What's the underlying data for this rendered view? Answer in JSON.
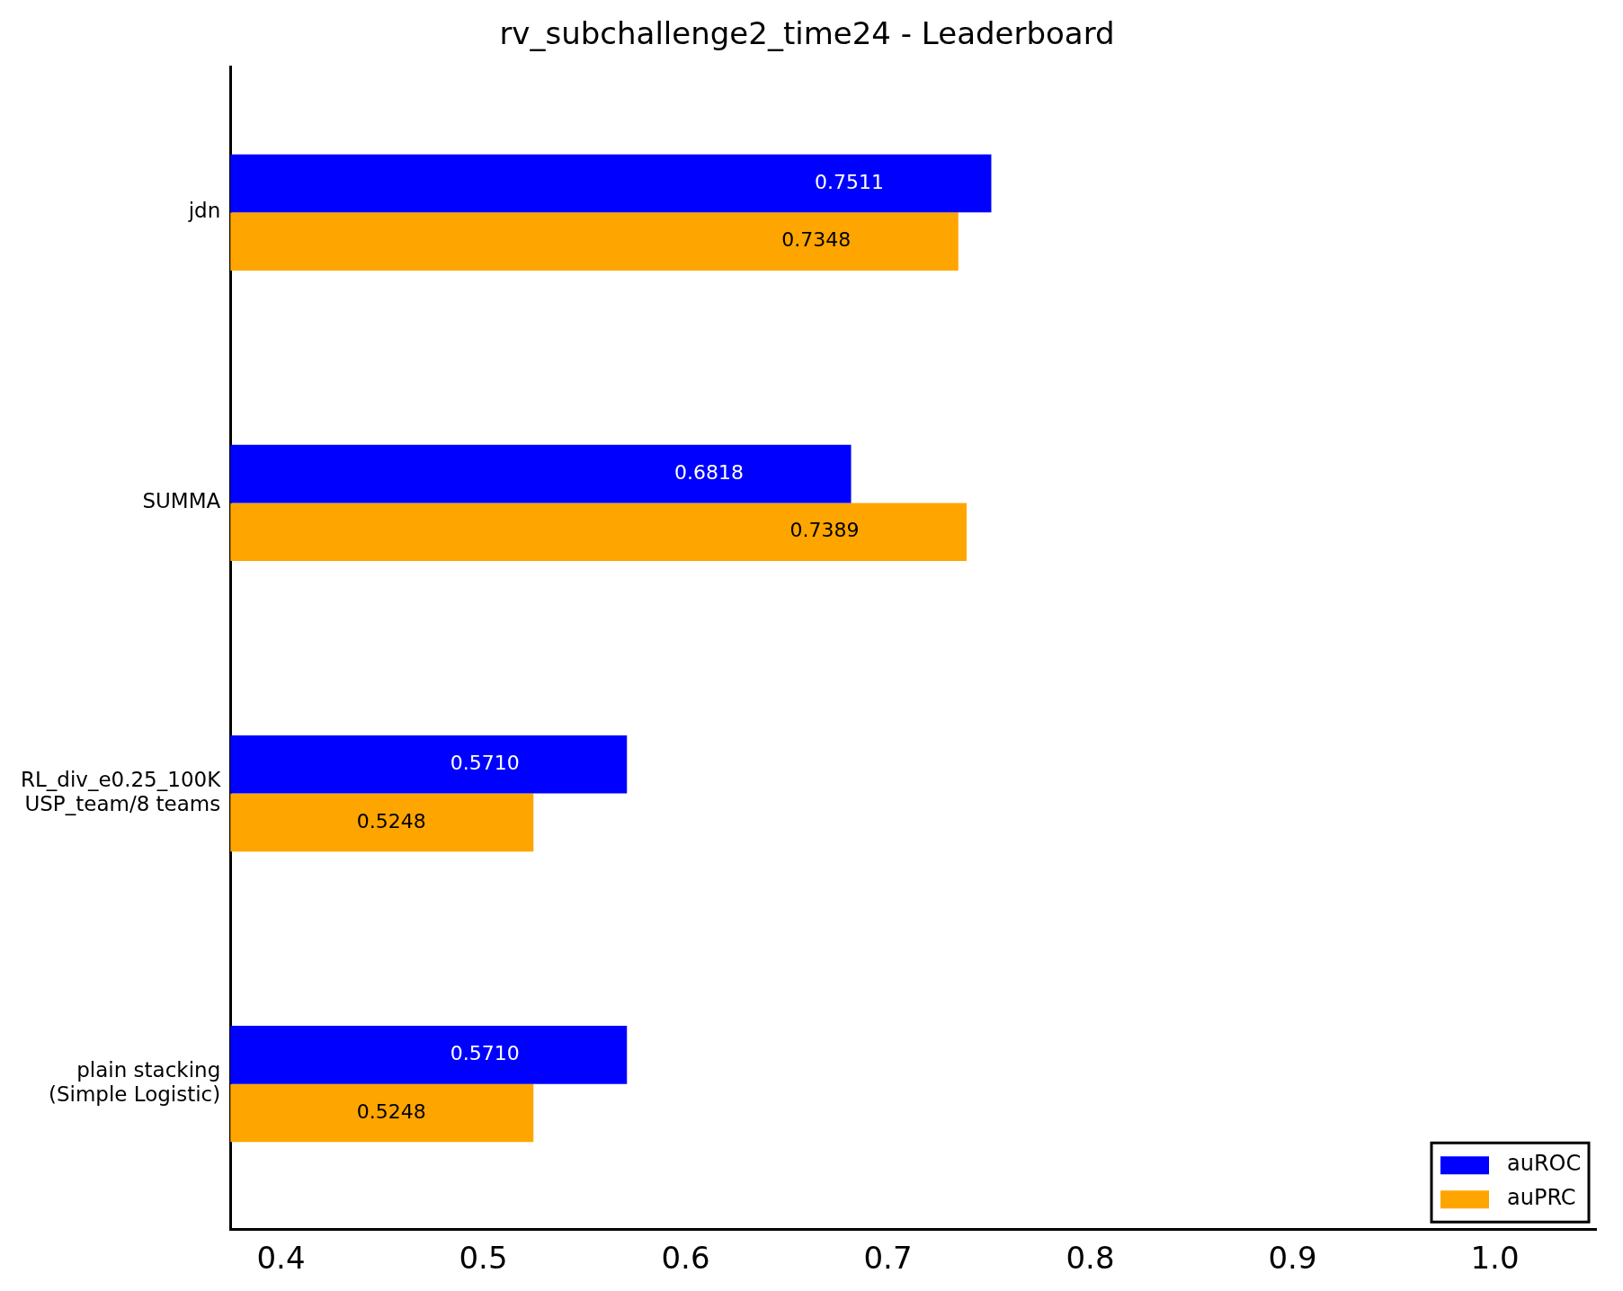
{
  "chart_data": {
    "type": "bar",
    "orientation": "horizontal",
    "title": "rv_subchallenge2_time24 - Leaderboard",
    "categories": [
      "jdn",
      "SUMMA",
      "RL_div_e0.25_100K\nUSP_team/8 teams",
      "plain stacking\n(Simple Logistic)"
    ],
    "series": [
      {
        "name": "auROC",
        "color": "#0000ff",
        "values": [
          0.7511,
          0.6818,
          0.571,
          0.571
        ],
        "value_labels": [
          "0.7511",
          "0.6818",
          "0.5710",
          "0.5710"
        ]
      },
      {
        "name": "auPRC",
        "color": "#ffa500",
        "values": [
          0.7348,
          0.7389,
          0.5248,
          0.5248
        ],
        "value_labels": [
          "0.7348",
          "0.7389",
          "0.5248",
          "0.5248"
        ]
      }
    ],
    "xlim": [
      0.375,
      1.05
    ],
    "xticks": [
      {
        "value": 0.4,
        "label": "0.4"
      },
      {
        "value": 0.5,
        "label": "0.5"
      },
      {
        "value": 0.6,
        "label": "0.6"
      },
      {
        "value": 0.7,
        "label": "0.7"
      },
      {
        "value": 0.8,
        "label": "0.8"
      },
      {
        "value": 0.9,
        "label": "0.9"
      },
      {
        "value": 1.0,
        "label": "1.0"
      }
    ],
    "grid": false,
    "legend": "bottom right"
  }
}
